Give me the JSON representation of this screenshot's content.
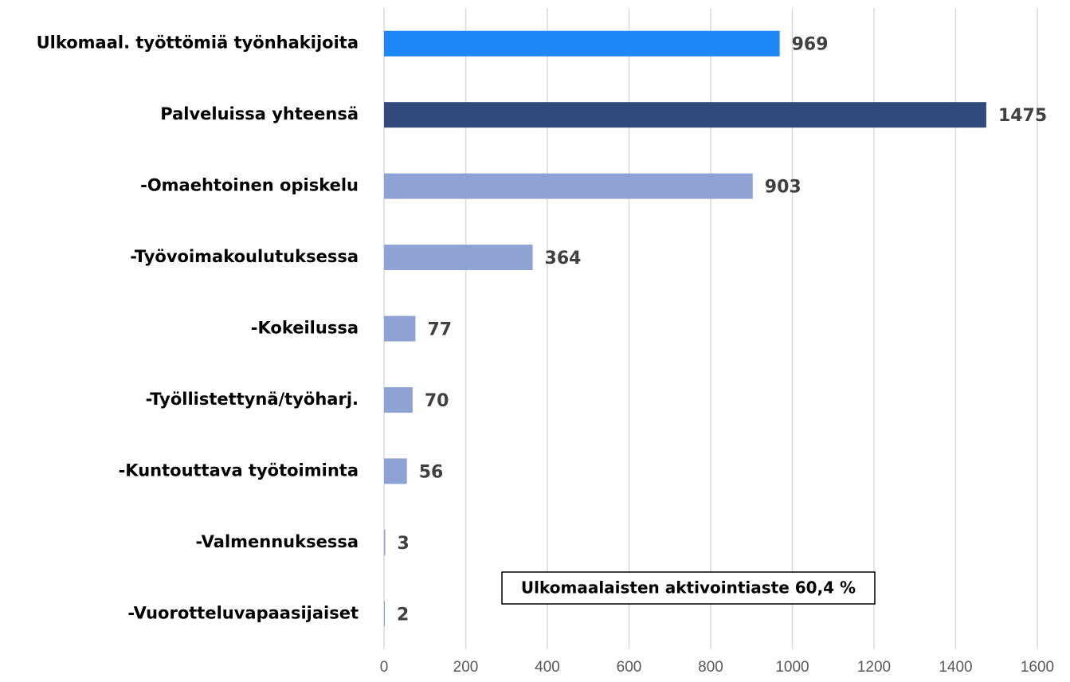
{
  "chart_data": {
    "type": "barh",
    "categories": [
      "Ulkomaal. työttömiä työnhakijoita",
      "Palveluissa yhteensä",
      "-Omaehtoinen opiskelu",
      "-Työvoimakoulutuksessa",
      "-Kokeilussa",
      "-Työllistettynä/työharj.",
      "-Kuntouttava työtoiminta",
      "-Valmennuksessa",
      "-Vuorotteluvapaasijaiset"
    ],
    "values": [
      969,
      1475,
      903,
      364,
      77,
      70,
      56,
      3,
      2
    ],
    "colors": [
      "#1e88fa",
      "#334a7c",
      "#8ea3d3",
      "#8ea3d3",
      "#8ea3d3",
      "#8ea3d3",
      "#8ea3d3",
      "#8ea3d3",
      "#8ea3d3"
    ],
    "xlim": [
      0,
      1600
    ],
    "xticks": [
      0,
      200,
      400,
      600,
      800,
      1000,
      1200,
      1400,
      1600
    ],
    "grid": true,
    "annotation": "Ulkomaalaisten aktivointiaste 60,4 %"
  }
}
